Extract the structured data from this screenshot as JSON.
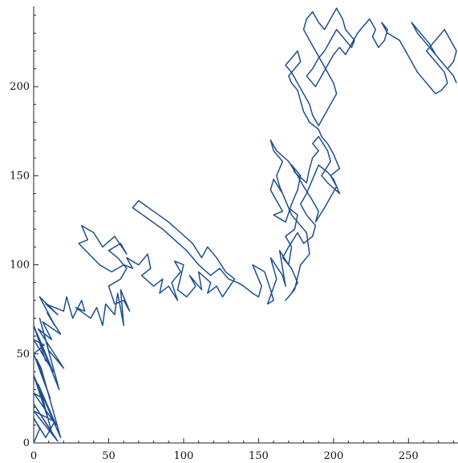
{
  "chart_data": {
    "type": "line",
    "title": "",
    "xlabel": "",
    "ylabel": "",
    "xlim": [
      0,
      283
    ],
    "ylim": [
      0,
      245
    ],
    "grid": false,
    "legend": "none",
    "x_ticks": [
      0,
      50,
      100,
      150,
      200,
      250
    ],
    "y_ticks": [
      0,
      50,
      100,
      150,
      200
    ],
    "x_tick_labels": [
      "0",
      "50",
      "100",
      "150",
      "200",
      "250"
    ],
    "y_tick_labels": [
      "0",
      "50",
      "100",
      "150",
      "200"
    ],
    "series": [
      {
        "color": "#1f4e8c",
        "points": [
          [
            0,
            0
          ],
          [
            4,
            8
          ],
          [
            0,
            14
          ],
          [
            8,
            3
          ],
          [
            14,
            12
          ],
          [
            0,
            18
          ],
          [
            16,
            1
          ],
          [
            0,
            22
          ],
          [
            12,
            6
          ],
          [
            6,
            25
          ],
          [
            0,
            28
          ],
          [
            15,
            10
          ],
          [
            3,
            33
          ],
          [
            9,
            15
          ],
          [
            0,
            38
          ],
          [
            18,
            3
          ],
          [
            5,
            42
          ],
          [
            2,
            47
          ],
          [
            11,
            25
          ],
          [
            0,
            50
          ],
          [
            7,
            55
          ],
          [
            0,
            58
          ],
          [
            13,
            40
          ],
          [
            2,
            62
          ],
          [
            8,
            46
          ],
          [
            0,
            66
          ],
          [
            17,
            30
          ],
          [
            4,
            70
          ],
          [
            10,
            52
          ],
          [
            20,
            42
          ],
          [
            3,
            64
          ],
          [
            12,
            58
          ],
          [
            6,
            68
          ],
          [
            18,
            61
          ],
          [
            9,
            73
          ],
          [
            14,
            66
          ],
          [
            4,
            82
          ],
          [
            16,
            72
          ],
          [
            8,
            78
          ],
          [
            20,
            74
          ],
          [
            22,
            82
          ],
          [
            26,
            70
          ],
          [
            32,
            80
          ],
          [
            34,
            74
          ],
          [
            28,
            76
          ],
          [
            38,
            70
          ],
          [
            42,
            76
          ],
          [
            46,
            66
          ],
          [
            48,
            78
          ],
          [
            54,
            72
          ],
          [
            56,
            84
          ],
          [
            60,
            66
          ],
          [
            58,
            86
          ],
          [
            64,
            74
          ],
          [
            60,
            80
          ],
          [
            54,
            78
          ],
          [
            50,
            88
          ],
          [
            58,
            92
          ],
          [
            62,
            98
          ],
          [
            56,
            104
          ],
          [
            50,
            108
          ],
          [
            58,
            112
          ],
          [
            62,
            106
          ],
          [
            54,
            116
          ],
          [
            46,
            110
          ],
          [
            40,
            118
          ],
          [
            32,
            122
          ],
          [
            36,
            114
          ],
          [
            30,
            112
          ],
          [
            44,
            100
          ],
          [
            52,
            96
          ],
          [
            60,
            100
          ],
          [
            66,
            98
          ],
          [
            62,
            104
          ],
          [
            70,
            100
          ],
          [
            76,
            106
          ],
          [
            78,
            98
          ],
          [
            72,
            94
          ],
          [
            80,
            88
          ],
          [
            86,
            92
          ],
          [
            84,
            84
          ],
          [
            90,
            88
          ],
          [
            96,
            80
          ],
          [
            92,
            90
          ],
          [
            98,
            96
          ],
          [
            94,
            102
          ],
          [
            100,
            100
          ],
          [
            96,
            86
          ],
          [
            102,
            82
          ],
          [
            108,
            88
          ],
          [
            104,
            94
          ],
          [
            112,
            86
          ],
          [
            110,
            96
          ],
          [
            118,
            90
          ],
          [
            116,
            84
          ],
          [
            122,
            88
          ],
          [
            126,
            82
          ],
          [
            134,
            92
          ],
          [
            128,
            96
          ],
          [
            122,
            104
          ],
          [
            116,
            110
          ],
          [
            112,
            104
          ],
          [
            106,
            112
          ],
          [
            98,
            118
          ],
          [
            90,
            124
          ],
          [
            80,
            130
          ],
          [
            70,
            136
          ],
          [
            66,
            132
          ],
          [
            76,
            126
          ],
          [
            86,
            120
          ],
          [
            94,
            114
          ],
          [
            102,
            108
          ],
          [
            110,
            100
          ],
          [
            118,
            94
          ],
          [
            124,
            98
          ],
          [
            130,
            92
          ],
          [
            136,
            90
          ],
          [
            140,
            88
          ],
          [
            146,
            84
          ],
          [
            150,
            82
          ],
          [
            152,
            88
          ],
          [
            146,
            100
          ],
          [
            154,
            96
          ],
          [
            158,
            86
          ],
          [
            160,
            80
          ],
          [
            156,
            78
          ],
          [
            162,
            92
          ],
          [
            158,
            104
          ],
          [
            166,
            94
          ],
          [
            168,
            88
          ],
          [
            164,
            108
          ],
          [
            170,
            100
          ],
          [
            172,
            110
          ],
          [
            168,
            116
          ],
          [
            174,
            120
          ],
          [
            176,
            128
          ],
          [
            170,
            132
          ],
          [
            166,
            140
          ],
          [
            160,
            148
          ],
          [
            158,
            142
          ],
          [
            162,
            136
          ],
          [
            166,
            130
          ],
          [
            160,
            128
          ],
          [
            168,
            124
          ],
          [
            172,
            134
          ],
          [
            176,
            142
          ],
          [
            178,
            150
          ],
          [
            172,
            156
          ],
          [
            174,
            152
          ],
          [
            182,
            146
          ],
          [
            184,
            154
          ],
          [
            186,
            160
          ],
          [
            190,
            164
          ],
          [
            186,
            168
          ],
          [
            190,
            172
          ],
          [
            196,
            164
          ],
          [
            198,
            158
          ],
          [
            192,
            150
          ],
          [
            196,
            146
          ],
          [
            204,
            140
          ],
          [
            200,
            148
          ],
          [
            196,
            152
          ],
          [
            190,
            156
          ],
          [
            186,
            148
          ],
          [
            182,
            140
          ],
          [
            178,
            134
          ],
          [
            182,
            128
          ],
          [
            188,
            122
          ],
          [
            186,
            116
          ],
          [
            180,
            112
          ],
          [
            176,
            118
          ],
          [
            170,
            110
          ],
          [
            166,
            104
          ],
          [
            172,
            98
          ],
          [
            176,
            90
          ],
          [
            172,
            84
          ],
          [
            168,
            80
          ],
          [
            174,
            86
          ],
          [
            178,
            100
          ],
          [
            184,
            106
          ],
          [
            182,
            118
          ],
          [
            176,
            124
          ],
          [
            172,
            128
          ],
          [
            168,
            136
          ],
          [
            164,
            144
          ],
          [
            162,
            150
          ],
          [
            166,
            158
          ],
          [
            160,
            164
          ],
          [
            158,
            170
          ],
          [
            162,
            164
          ],
          [
            170,
            158
          ],
          [
            176,
            150
          ],
          [
            180,
            144
          ],
          [
            186,
            136
          ],
          [
            190,
            130
          ],
          [
            188,
            124
          ],
          [
            194,
            132
          ],
          [
            198,
            138
          ],
          [
            202,
            144
          ],
          [
            198,
            150
          ],
          [
            204,
            154
          ],
          [
            200,
            162
          ],
          [
            196,
            168
          ],
          [
            192,
            172
          ],
          [
            190,
            176
          ],
          [
            184,
            180
          ],
          [
            180,
            186
          ],
          [
            178,
            192
          ],
          [
            176,
            198
          ],
          [
            172,
            202
          ],
          [
            170,
            206
          ],
          [
            174,
            210
          ],
          [
            178,
            214
          ],
          [
            176,
            220
          ],
          [
            172,
            216
          ],
          [
            168,
            212
          ],
          [
            172,
            208
          ],
          [
            176,
            202
          ],
          [
            180,
            196
          ],
          [
            184,
            190
          ],
          [
            186,
            184
          ],
          [
            190,
            178
          ],
          [
            194,
            184
          ],
          [
            198,
            190
          ],
          [
            202,
            196
          ],
          [
            200,
            202
          ],
          [
            196,
            208
          ],
          [
            192,
            214
          ],
          [
            188,
            220
          ],
          [
            184,
            226
          ],
          [
            180,
            232
          ],
          [
            182,
            238
          ],
          [
            186,
            242
          ],
          [
            190,
            236
          ],
          [
            194,
            232
          ],
          [
            198,
            238
          ],
          [
            202,
            244
          ],
          [
            206,
            238
          ],
          [
            208,
            232
          ],
          [
            214,
            226
          ],
          [
            212,
            222
          ],
          [
            206,
            228
          ],
          [
            202,
            232
          ],
          [
            198,
            226
          ],
          [
            194,
            220
          ],
          [
            190,
            216
          ],
          [
            186,
            210
          ],
          [
            182,
            206
          ],
          [
            188,
            200
          ],
          [
            192,
            206
          ],
          [
            196,
            212
          ],
          [
            200,
            218
          ],
          [
            204,
            222
          ],
          [
            208,
            218
          ],
          [
            212,
            224
          ],
          [
            216,
            230
          ],
          [
            220,
            234
          ],
          [
            224,
            238
          ],
          [
            228,
            232
          ],
          [
            226,
            228
          ],
          [
            230,
            222
          ],
          [
            234,
            226
          ],
          [
            236,
            232
          ],
          [
            232,
            236
          ],
          [
            236,
            230
          ],
          [
            244,
            226
          ],
          [
            248,
            220
          ],
          [
            252,
            214
          ],
          [
            256,
            208
          ],
          [
            260,
            204
          ],
          [
            264,
            200
          ],
          [
            268,
            196
          ],
          [
            272,
            198
          ],
          [
            276,
            202
          ],
          [
            274,
            208
          ],
          [
            270,
            212
          ],
          [
            266,
            216
          ],
          [
            262,
            220
          ],
          [
            266,
            224
          ],
          [
            270,
            228
          ],
          [
            274,
            232
          ],
          [
            278,
            226
          ],
          [
            282,
            220
          ],
          [
            280,
            214
          ],
          [
            276,
            210
          ],
          [
            272,
            214
          ],
          [
            268,
            218
          ],
          [
            264,
            224
          ],
          [
            260,
            228
          ],
          [
            256,
            232
          ],
          [
            252,
            236
          ],
          [
            256,
            230
          ],
          [
            260,
            226
          ],
          [
            264,
            222
          ],
          [
            268,
            218
          ],
          [
            272,
            214
          ],
          [
            276,
            210
          ],
          [
            280,
            206
          ],
          [
            282,
            202
          ]
        ]
      }
    ]
  }
}
